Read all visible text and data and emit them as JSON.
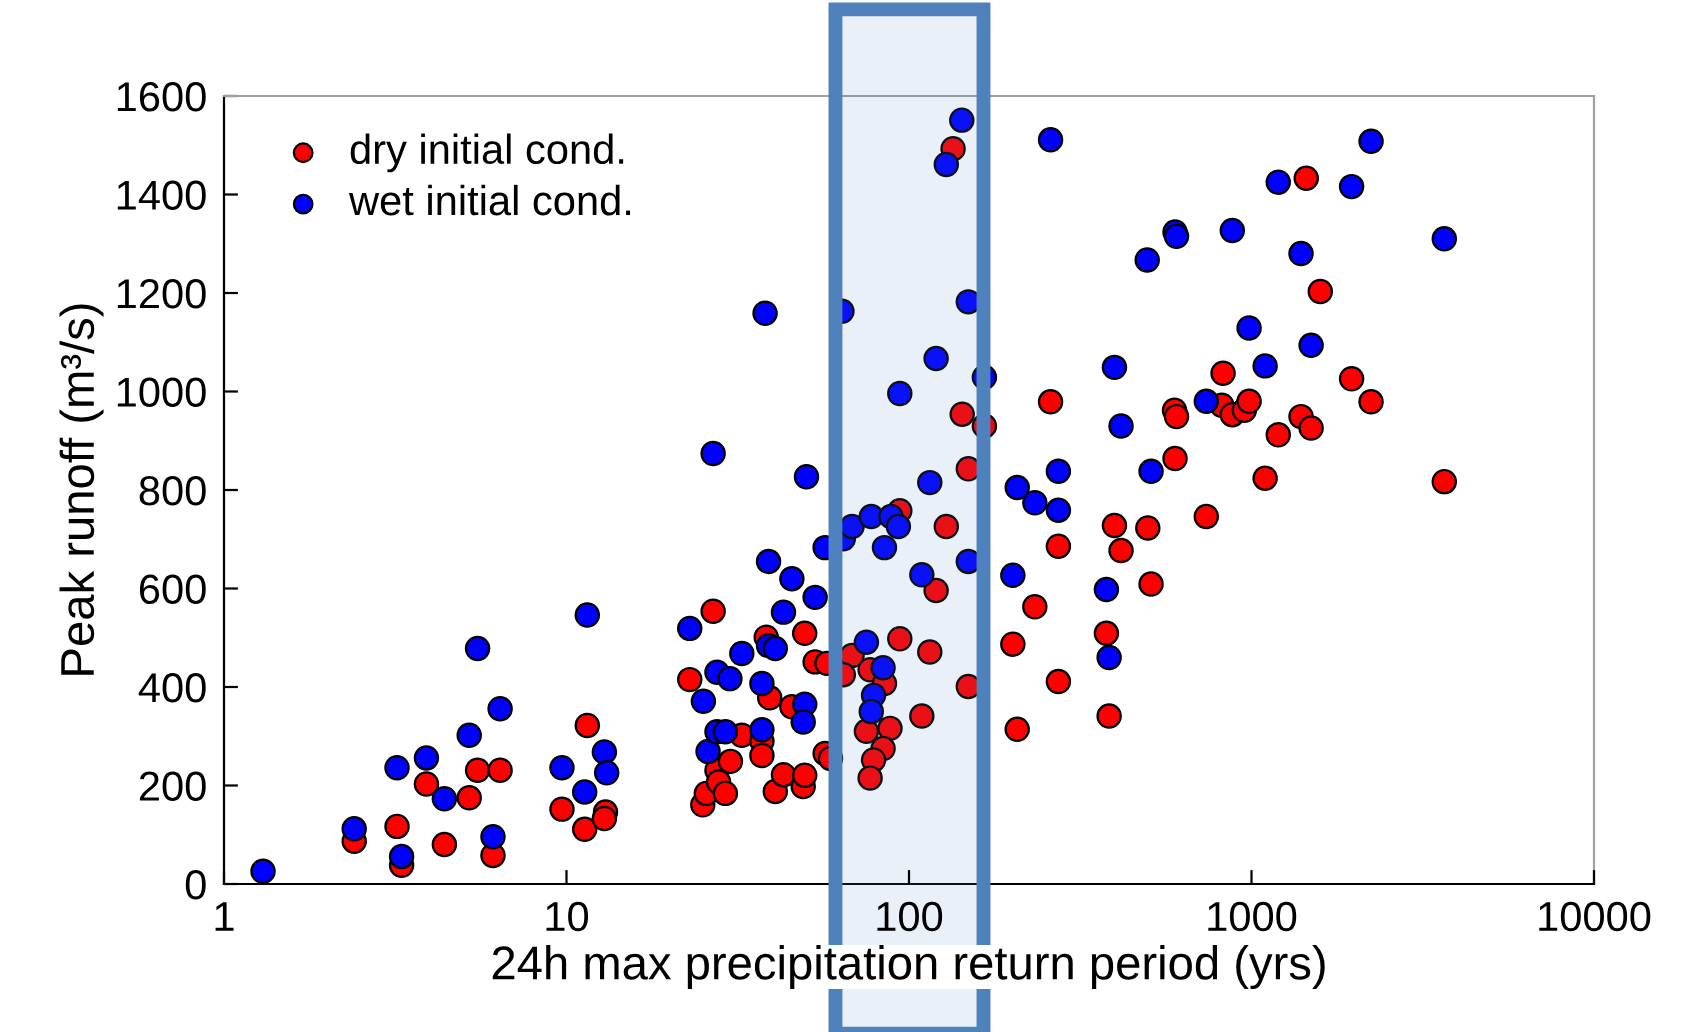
{
  "chart_data": {
    "type": "scatter",
    "xlabel": "24h max precipitation return period (yrs)",
    "ylabel": "Peak runoff (m³/s)",
    "log": "x",
    "xlim": [
      1,
      10000
    ],
    "xticks": [
      1,
      10,
      100,
      1000,
      10000
    ],
    "ylim": [
      0,
      1600
    ],
    "yticks": [
      0,
      200,
      400,
      600,
      800,
      1000,
      1200,
      1400,
      1600
    ],
    "grid": false,
    "legend": "top left",
    "marker": "circle",
    "bands": [
      {
        "axis": "x",
        "from": 61,
        "to": 165,
        "color": "#4f81bd"
      }
    ],
    "series": [
      {
        "name": "dry initial cond.",
        "color": "#ff0000",
        "x": [
          2.4,
          3.2,
          3.3,
          3.9,
          4.4,
          5.2,
          5.5,
          6.4,
          6.1,
          9.7,
          11.5,
          11.3,
          13,
          12.9,
          22.9,
          26.8,
          27.5,
          25,
          25.6,
          32.5,
          37.2,
          37.2,
          30.1,
          27.8,
          29.1,
          40.7,
          43,
          49.1,
          49.6,
          39.2,
          45.5,
          53.2,
          49.6,
          38.3,
          94,
          128.5,
          120,
          94,
          115,
          68.2,
          64.3,
          57.6,
          77,
          84.8,
          75.1,
          88,
          84,
          78.8,
          77,
          109,
          149,
          56.9,
          59,
          134.5,
          143,
          166,
          259,
          149,
          273,
          233,
          201,
          273,
          207,
          1445,
          1588,
          826,
          1960,
          2234,
          819,
          879,
          953,
          984,
          596,
          604,
          1197,
          1395,
          1493,
          598,
          1096,
          3655,
          738,
          398,
          498,
          416,
          509,
          377,
          384
        ],
        "values": [
          87,
          117,
          38,
          203,
          80,
          175,
          231,
          231,
          58,
          152,
          322,
          111,
          146,
          133,
          415,
          554,
          231,
          161,
          184,
          302,
          290,
          261,
          249,
          207,
          184,
          188,
          222,
          198,
          221,
          378,
          360,
          451,
          509,
          501,
          758,
          726,
          596,
          498,
          471,
          464,
          425,
          448,
          435,
          407,
          310,
          316,
          275,
          252,
          215,
          341,
          401,
          265,
          255,
          1493,
          954,
          930,
          979,
          843,
          686,
          563,
          487,
          411,
          314,
          1433,
          1203,
          1037,
          1026,
          979,
          972,
          953,
          962,
          980,
          962,
          949,
          912,
          949,
          926,
          864,
          824,
          817,
          746,
          728,
          723,
          677,
          609,
          509,
          341
        ]
      },
      {
        "name": "wet initial cond.",
        "color": "#0000ff",
        "x": [
          1.3,
          2.4,
          3.3,
          3.2,
          3.9,
          4.4,
          5.2,
          5.5,
          6.4,
          6.1,
          9.7,
          11.5,
          11.3,
          12.9,
          13.1,
          22.9,
          25.1,
          26.8,
          27.5,
          25.9,
          27.5,
          30,
          29.1,
          37.2,
          49.6,
          49.1,
          37.2,
          38.9,
          40.7,
          32.5,
          43,
          45.5,
          53.2,
          38.9,
          50.2,
          38,
          63.7,
          56.9,
          64.3,
          68.2,
          77.6,
          88.6,
          93.1,
          84.8,
          115,
          109,
          149,
          75.1,
          84,
          78.8,
          77.6,
          142.6,
          128.5,
          259,
          149,
          120,
          166,
          94,
          207,
          233,
          273,
          273,
          201,
          2234,
          1197,
          1960,
          598,
          604,
          879,
          496,
          1395,
          3655,
          984,
          1493,
          1096,
          398,
          738,
          416,
          509,
          377,
          384
        ],
        "values": [
          26,
          112,
          56,
          236,
          256,
          173,
          302,
          478,
          356,
          96,
          236,
          546,
          187,
          268,
          226,
          519,
          371,
          874,
          430,
          269,
          309,
          417,
          309,
          313,
          365,
          329,
          407,
          484,
          478,
          468,
          552,
          620,
          582,
          655,
          827,
          1159,
          1163,
          683,
          701,
          726,
          746,
          746,
          726,
          683,
          815,
          628,
          655,
          491,
          439,
          383,
          350,
          1551,
          1461,
          1511,
          1182,
          1067,
          1029,
          996,
          805,
          774,
          838,
          759,
          627,
          1508,
          1425,
          1416,
          1324,
          1315,
          1327,
          1267,
          1280,
          1310,
          1129,
          1094,
          1052,
          1049,
          980,
          930,
          838,
          598,
          460
        ]
      }
    ]
  }
}
